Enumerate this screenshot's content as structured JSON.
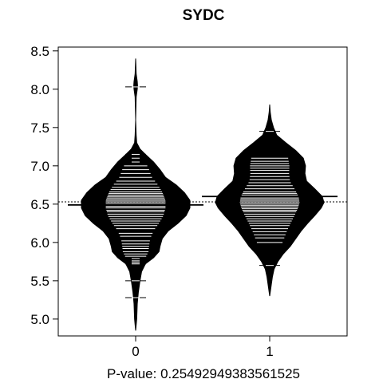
{
  "chart_data": {
    "type": "beanplot",
    "title": "SYDC",
    "xlabel": "P-value: 0.25492949383561525",
    "ylabel": "",
    "categories": [
      "0",
      "1"
    ],
    "ylim": [
      4.78,
      8.55
    ],
    "yticks": [
      5.0,
      5.5,
      6.0,
      6.5,
      7.0,
      7.5,
      8.0,
      8.5
    ],
    "ytick_labels": [
      "5.0",
      "5.5",
      "6.0",
      "6.5",
      "7.0",
      "7.5",
      "8.0",
      "8.5"
    ],
    "overall_mean_line": 6.53,
    "grid": false,
    "series": [
      {
        "category": "0",
        "group_mean": 6.49,
        "density_profile": [
          [
            4.85,
            0.0
          ],
          [
            5.0,
            0.02
          ],
          [
            5.2,
            0.03
          ],
          [
            5.35,
            0.05
          ],
          [
            5.5,
            0.08
          ],
          [
            5.62,
            0.11
          ],
          [
            5.72,
            0.18
          ],
          [
            5.8,
            0.33
          ],
          [
            5.88,
            0.43
          ],
          [
            5.95,
            0.45
          ],
          [
            6.05,
            0.49
          ],
          [
            6.15,
            0.6
          ],
          [
            6.25,
            0.78
          ],
          [
            6.35,
            0.93
          ],
          [
            6.45,
            1.0
          ],
          [
            6.55,
            1.0
          ],
          [
            6.65,
            0.9
          ],
          [
            6.75,
            0.75
          ],
          [
            6.85,
            0.55
          ],
          [
            6.95,
            0.45
          ],
          [
            7.05,
            0.33
          ],
          [
            7.15,
            0.18
          ],
          [
            7.22,
            0.08
          ],
          [
            7.3,
            0.02
          ],
          [
            7.4,
            0.01
          ],
          [
            7.6,
            0.0
          ],
          [
            7.9,
            0.01
          ],
          [
            8.0,
            0.03
          ],
          [
            8.05,
            0.035
          ],
          [
            8.1,
            0.03
          ],
          [
            8.2,
            0.01
          ],
          [
            8.4,
            0.0
          ]
        ],
        "observations": [
          5.28,
          5.5,
          5.72,
          5.74,
          5.76,
          5.79,
          5.82,
          5.85,
          5.88,
          5.92,
          5.95,
          5.98,
          6.02,
          6.08,
          6.12,
          6.18,
          6.22,
          6.25,
          6.28,
          6.31,
          6.34,
          6.37,
          6.4,
          6.42,
          6.45,
          6.47,
          6.5,
          6.52,
          6.54,
          6.56,
          6.58,
          6.6,
          6.62,
          6.64,
          6.66,
          6.69,
          6.72,
          6.76,
          6.8,
          6.85,
          6.9,
          6.95,
          7.0,
          7.05,
          7.1,
          7.15,
          8.03
        ]
      },
      {
        "category": "1",
        "group_mean": 6.6,
        "density_profile": [
          [
            5.3,
            0.0
          ],
          [
            5.45,
            0.03
          ],
          [
            5.55,
            0.05
          ],
          [
            5.65,
            0.08
          ],
          [
            5.75,
            0.15
          ],
          [
            5.85,
            0.25
          ],
          [
            5.95,
            0.38
          ],
          [
            6.05,
            0.48
          ],
          [
            6.15,
            0.58
          ],
          [
            6.25,
            0.7
          ],
          [
            6.35,
            0.83
          ],
          [
            6.45,
            0.95
          ],
          [
            6.52,
            1.0
          ],
          [
            6.6,
            0.97
          ],
          [
            6.7,
            0.83
          ],
          [
            6.8,
            0.68
          ],
          [
            6.9,
            0.65
          ],
          [
            7.0,
            0.66
          ],
          [
            7.1,
            0.62
          ],
          [
            7.2,
            0.48
          ],
          [
            7.3,
            0.3
          ],
          [
            7.4,
            0.13
          ],
          [
            7.5,
            0.07
          ],
          [
            7.6,
            0.03
          ],
          [
            7.7,
            0.01
          ],
          [
            7.8,
            0.0
          ]
        ],
        "observations": [
          5.7,
          6.0,
          6.06,
          6.1,
          6.14,
          6.18,
          6.22,
          6.25,
          6.28,
          6.31,
          6.34,
          6.37,
          6.4,
          6.42,
          6.44,
          6.46,
          6.48,
          6.5,
          6.52,
          6.54,
          6.56,
          6.58,
          6.6,
          6.62,
          6.64,
          6.66,
          6.7,
          6.74,
          6.78,
          6.82,
          6.86,
          6.9,
          6.94,
          6.97,
          7.0,
          7.03,
          7.06,
          7.1,
          7.45
        ]
      }
    ],
    "colors": {
      "bean_fill": "#000000",
      "observation_line": "#ffffff",
      "mean_line": "#000000"
    }
  }
}
